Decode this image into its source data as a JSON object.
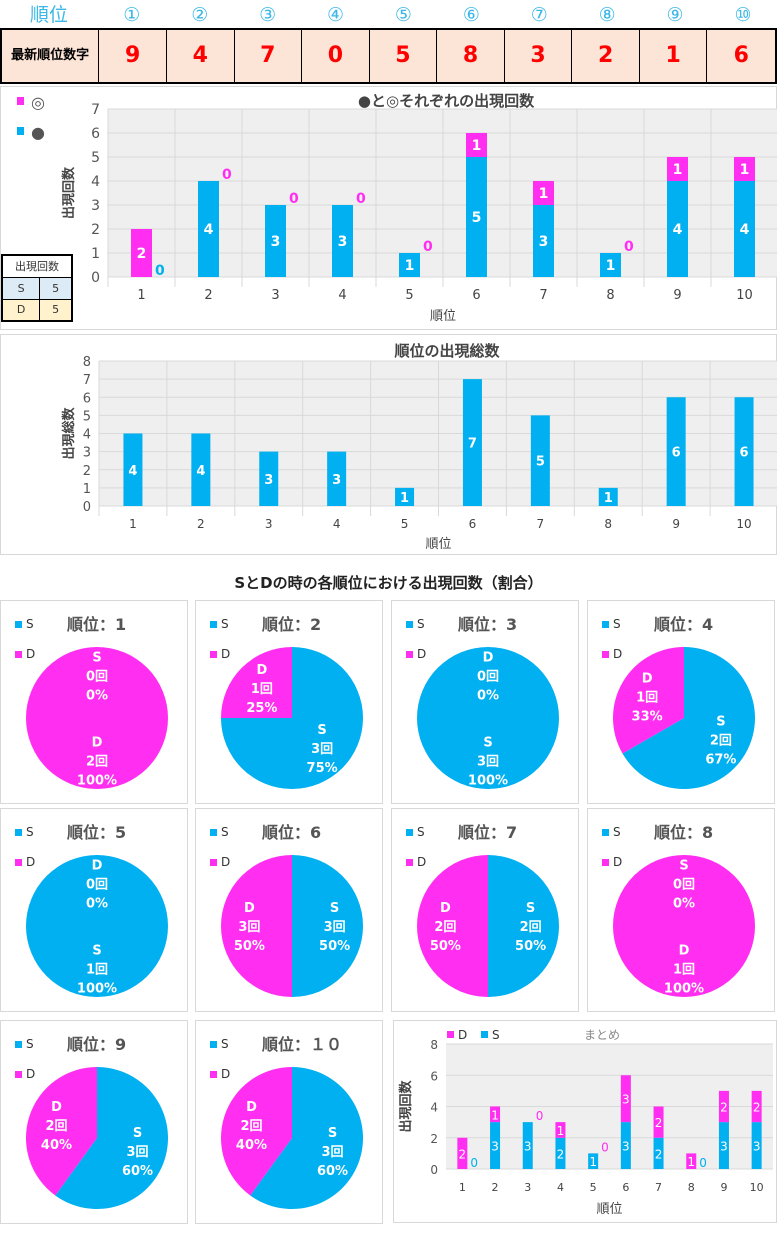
{
  "header": {
    "rank_label": "順位",
    "ranks": [
      "①",
      "②",
      "③",
      "④",
      "⑤",
      "⑥",
      "⑦",
      "⑧",
      "⑨",
      "⑩"
    ]
  },
  "latest": {
    "label": "最新順位数字",
    "digits": [
      "9",
      "4",
      "7",
      "0",
      "5",
      "8",
      "3",
      "2",
      "1",
      "6"
    ]
  },
  "colors": {
    "blue": "#00b0f0",
    "magenta": "#ff2ef0"
  },
  "mini_table": {
    "header": "出現回数",
    "rows": [
      {
        "k": "S",
        "v": "5"
      },
      {
        "k": "D",
        "v": "5"
      }
    ]
  },
  "chart_data": [
    {
      "type": "bar",
      "stacked": true,
      "title": "●と◎それぞれの出現回数",
      "xlabel": "順位",
      "ylabel": "出現回数",
      "ylim": [
        0,
        7
      ],
      "categories": [
        "1",
        "2",
        "3",
        "4",
        "5",
        "6",
        "7",
        "8",
        "9",
        "10"
      ],
      "legend": [
        "◎",
        "●"
      ],
      "series": [
        {
          "name": "●",
          "color": "#00b0f0",
          "values": [
            0,
            4,
            3,
            3,
            1,
            5,
            3,
            1,
            4,
            4
          ]
        },
        {
          "name": "◎",
          "color": "#ff2ef0",
          "values": [
            2,
            0,
            0,
            0,
            0,
            1,
            1,
            0,
            1,
            1
          ]
        }
      ]
    },
    {
      "type": "bar",
      "title": "順位の出現総数",
      "xlabel": "順位",
      "ylabel": "出現総数",
      "ylim": [
        0,
        8
      ],
      "categories": [
        "1",
        "2",
        "3",
        "4",
        "5",
        "6",
        "7",
        "8",
        "9",
        "10"
      ],
      "series": [
        {
          "name": "total",
          "color": "#00b0f0",
          "values": [
            4,
            4,
            3,
            3,
            1,
            7,
            5,
            1,
            6,
            6
          ]
        }
      ]
    },
    {
      "type": "pie",
      "title": "SとDの時の各順位における出現回数（割合）",
      "rank_prefix": "順位：",
      "ranks": [
        "1",
        "2",
        "3",
        "4",
        "5",
        "6",
        "7",
        "8",
        "9",
        "１０"
      ],
      "count_suffix": "回",
      "S": [
        0,
        3,
        3,
        2,
        1,
        3,
        2,
        0,
        3,
        3
      ],
      "D": [
        2,
        1,
        0,
        1,
        0,
        3,
        2,
        1,
        2,
        2
      ]
    },
    {
      "type": "bar",
      "stacked": true,
      "title": "まとめ",
      "xlabel": "順位",
      "ylabel": "出現回数",
      "ylim": [
        0,
        8
      ],
      "categories": [
        "1",
        "2",
        "3",
        "4",
        "5",
        "6",
        "7",
        "8",
        "9",
        "10"
      ],
      "legend": [
        "D",
        "S"
      ],
      "series": [
        {
          "name": "S",
          "color": "#00b0f0",
          "values": [
            0,
            3,
            3,
            2,
            1,
            3,
            2,
            0,
            3,
            3
          ]
        },
        {
          "name": "D",
          "color": "#ff2ef0",
          "values": [
            2,
            1,
            0,
            1,
            0,
            3,
            2,
            1,
            2,
            2
          ]
        }
      ]
    }
  ]
}
